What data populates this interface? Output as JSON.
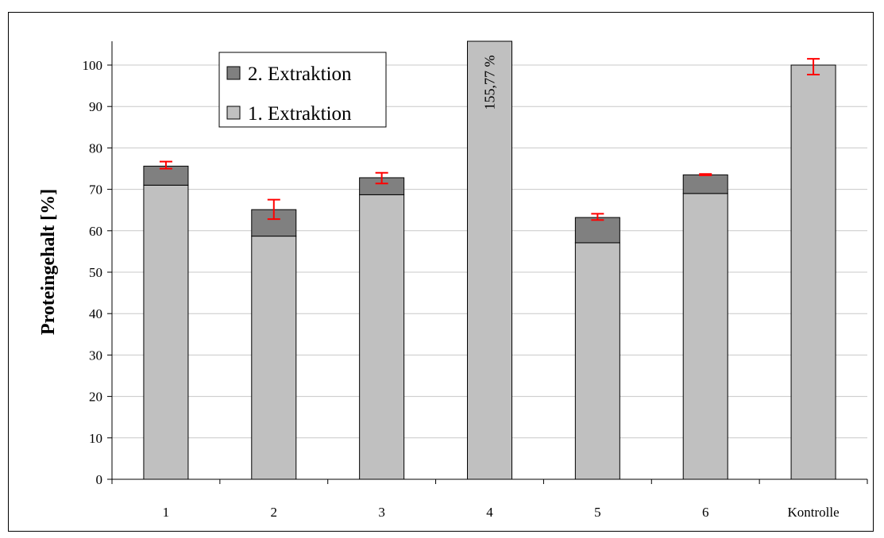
{
  "chart_data": {
    "type": "bar",
    "stacked": true,
    "categories": [
      "1",
      "2",
      "3",
      "4",
      "5",
      "6",
      "Kontrolle"
    ],
    "series": [
      {
        "name": "1. Extraktion",
        "values": [
          71,
          58.7,
          68.7,
          100,
          57.1,
          69,
          100
        ],
        "color": "#c0c0c0"
      },
      {
        "name": "2. Extraktion",
        "values": [
          4.6,
          6.4,
          4.1,
          0,
          6.1,
          4.5,
          0
        ],
        "color": "#808080"
      }
    ],
    "error_bars": {
      "low": [
        75,
        62.8,
        71.4,
        null,
        62.6,
        73.4,
        97.7
      ],
      "high": [
        76.7,
        67.5,
        74,
        null,
        64.1,
        73.7,
        101.5
      ],
      "color": "#ff0000"
    },
    "annotations": [
      {
        "category": "4",
        "text": "155,77 %"
      }
    ],
    "title": "",
    "xlabel": "",
    "ylabel": "Proteingehalt [%]",
    "ylim": [
      0,
      100
    ],
    "yticks": [
      0,
      10,
      20,
      30,
      40,
      50,
      60,
      70,
      80,
      90,
      100
    ],
    "grid": true,
    "legend_position": "top-left",
    "legend": [
      "2. Extraktion",
      "1. Extraktion"
    ]
  }
}
